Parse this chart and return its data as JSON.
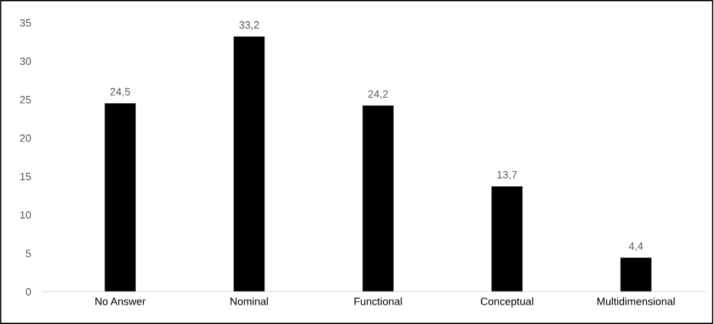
{
  "chart_data": {
    "type": "bar",
    "categories": [
      "No Answer",
      "Nominal",
      "Functional",
      "Conceptual",
      "Multidimensional"
    ],
    "values": [
      24.5,
      33.2,
      24.2,
      13.7,
      4.4
    ],
    "value_labels": [
      "24,5",
      "33,2",
      "24,2",
      "13,7",
      "4,4"
    ],
    "color": "#000000",
    "ylim": [
      0,
      35
    ],
    "yticks": [
      0,
      5,
      10,
      15,
      20,
      25,
      30,
      35
    ],
    "grid": false,
    "legend": false
  }
}
